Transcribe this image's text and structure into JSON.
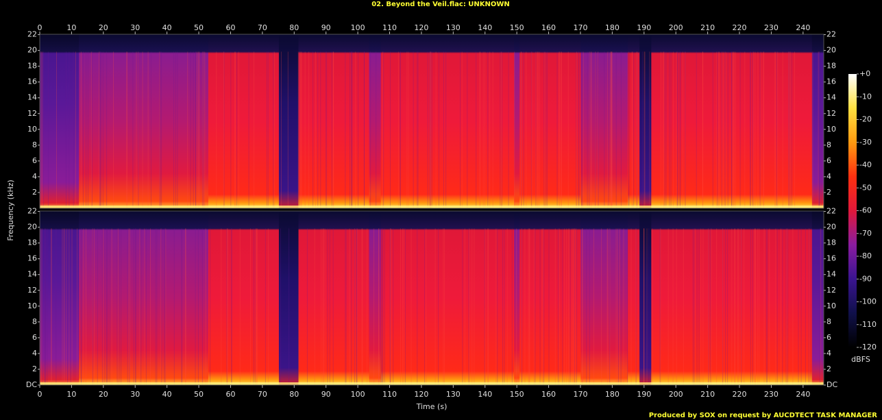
{
  "chart_data": {
    "type": "heatmap",
    "title": "02. Beyond the Veil.flac: UNKNOWN",
    "xlabel": "Time (s)",
    "ylabel": "Frequency (kHz)",
    "xlim": [
      0,
      246.5
    ],
    "xticks": [
      0,
      10,
      20,
      30,
      40,
      50,
      60,
      70,
      80,
      90,
      100,
      110,
      120,
      130,
      140,
      150,
      160,
      170,
      180,
      190,
      200,
      210,
      220,
      230,
      240
    ],
    "panels": [
      {
        "ylim": [
          0,
          22.05
        ],
        "yticks": [
          2,
          4,
          6,
          8,
          10,
          12,
          14,
          16,
          18,
          20,
          22
        ]
      },
      {
        "ylim": [
          0,
          22.05
        ],
        "yticks": [
          {
            "value": 0,
            "label": "DC"
          },
          2,
          4,
          6,
          8,
          10,
          12,
          14,
          16,
          18,
          20,
          22
        ]
      }
    ],
    "colorbar": {
      "label": "dBFS",
      "lim": [
        -120,
        0
      ],
      "ticks": [
        {
          "value": 0,
          "label": "+0"
        },
        -10,
        -20,
        -30,
        -40,
        -50,
        -60,
        -70,
        -80,
        -90,
        -100,
        -110,
        -120
      ],
      "colormap": [
        "#000000",
        "#10104a",
        "#3a1490",
        "#8a1ca0",
        "#e0183a",
        "#ff3010",
        "#ff9a10",
        "#ffe040",
        "#ffffff"
      ]
    },
    "footer": "Produced by SOX on request by AUCDTECT TASK MANAGER"
  }
}
